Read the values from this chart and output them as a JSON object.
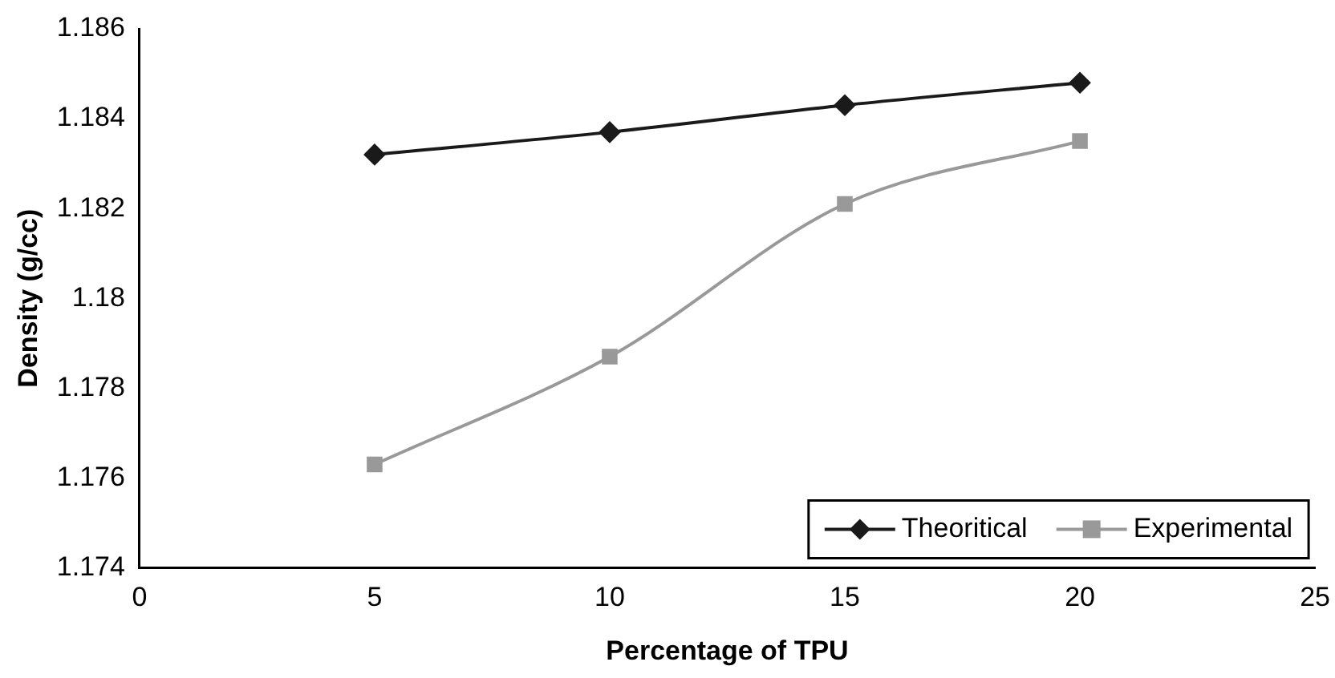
{
  "chart_data": {
    "type": "line",
    "xlabel": "Percentage of TPU",
    "ylabel": "Density (g/cc)",
    "x": [
      5,
      10,
      15,
      20
    ],
    "series": [
      {
        "name": "Theoritical",
        "color": "#1a1a1a",
        "marker": "diamond",
        "values": [
          1.1832,
          1.1837,
          1.1843,
          1.1848
        ]
      },
      {
        "name": "Experimental",
        "color": "#999999",
        "marker": "square",
        "values": [
          1.1763,
          1.1787,
          1.1821,
          1.1835
        ]
      }
    ],
    "xlim": [
      0,
      25
    ],
    "xticks": [
      0,
      5,
      10,
      15,
      20,
      25
    ],
    "ylim": [
      1.174,
      1.186
    ],
    "yticks": [
      1.174,
      1.176,
      1.178,
      1.18,
      1.182,
      1.184,
      1.186
    ],
    "grid": false,
    "legend": "bottom right"
  }
}
